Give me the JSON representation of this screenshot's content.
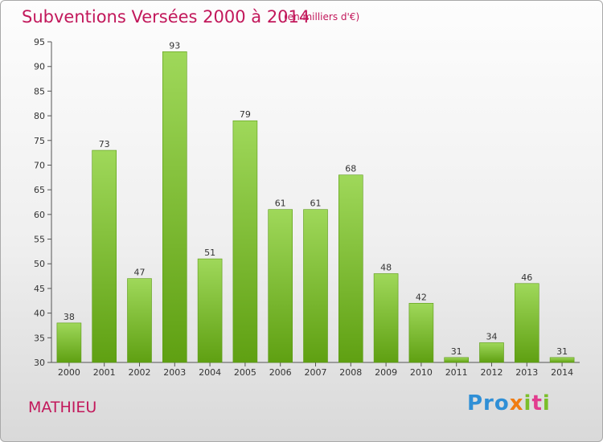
{
  "header": {
    "title": "Subventions Versées 2000 à 2014",
    "unit": "(en milliers d'€)"
  },
  "footer": {
    "commune": "MATHIEU",
    "logo": "Proxiti"
  },
  "colors": {
    "title": "#c2185b",
    "bar_top": "#9fd85a",
    "bar_bottom": "#5fa012"
  },
  "chart_data": {
    "type": "bar",
    "categories": [
      "2000",
      "2001",
      "2002",
      "2003",
      "2004",
      "2005",
      "2006",
      "2007",
      "2008",
      "2009",
      "2010",
      "2011",
      "2012",
      "2013",
      "2014"
    ],
    "values": [
      38,
      73,
      47,
      93,
      51,
      79,
      61,
      61,
      68,
      48,
      42,
      31,
      34,
      46,
      31
    ],
    "ylim": [
      30,
      95
    ],
    "yticks": [
      30,
      35,
      40,
      45,
      50,
      55,
      60,
      65,
      70,
      75,
      80,
      85,
      90,
      95
    ],
    "grid": false,
    "legend": "none"
  }
}
